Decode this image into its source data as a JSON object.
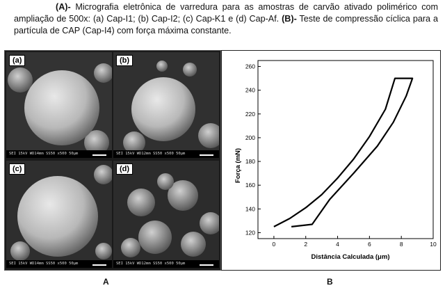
{
  "caption": {
    "a_tag": "(A)-",
    "a_text": " Micrografia eletrônica de varredura para as amostras de carvão ativado polimérico com ampliação de 500x: (a) Cap-I1; (b) Cap-I2; (c) Cap-K1 e (d) Cap-Af. ",
    "b_tag": "(B)-",
    "b_text": " Teste de compressão cíclica para a partícula de CAP (Cap-I4) com força máxima constante."
  },
  "micrographs": [
    {
      "label": "(a)",
      "info": "SEI   15kV   WD14mm   SS50   x500   50μm"
    },
    {
      "label": "(b)",
      "info": "SEI   15kV   WD12mm   SS50   x500   50μm"
    },
    {
      "label": "(c)",
      "info": "SEI   15kV   WD14mm   SS50   x500   50μm"
    },
    {
      "label": "(d)",
      "info": "SEI   15kV   WD12mm   SS50   x500   50μm"
    }
  ],
  "panel_labels": {
    "left": "A",
    "right": "B"
  },
  "chart_data": {
    "type": "line",
    "xlabel": "Distância Calculada (μm)",
    "ylabel": "Força (mN)",
    "xlim": [
      -1,
      10
    ],
    "ylim": [
      115,
      265
    ],
    "xticks": [
      0,
      2,
      4,
      6,
      8,
      10
    ],
    "yticks": [
      120,
      140,
      160,
      180,
      200,
      220,
      240,
      260
    ],
    "grid": false,
    "series": [
      {
        "values": [
          [
            0.0,
            125
          ],
          [
            1.0,
            132
          ],
          [
            2.0,
            141
          ],
          [
            3.0,
            152
          ],
          [
            4.0,
            166
          ],
          [
            5.0,
            182
          ],
          [
            6.0,
            201
          ],
          [
            7.0,
            224
          ],
          [
            7.6,
            250
          ],
          [
            8.7,
            250
          ],
          [
            8.3,
            235
          ],
          [
            7.5,
            213
          ],
          [
            6.5,
            193
          ],
          [
            5.0,
            170
          ],
          [
            3.5,
            148
          ],
          [
            2.4,
            127
          ],
          [
            1.1,
            125
          ]
        ]
      }
    ],
    "line_color": "#000000"
  }
}
